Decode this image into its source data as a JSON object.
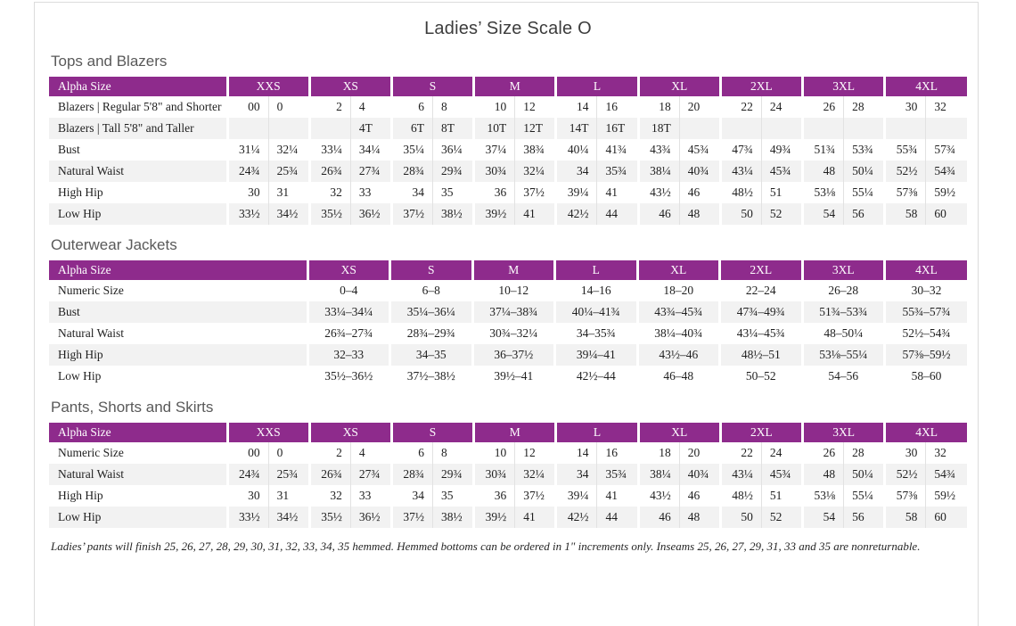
{
  "page": {
    "title": "Ladies’ Size Scale O",
    "footnote": "Ladies’ pants will finish 25, 26, 27, 28, 29, 30, 31, 32, 33, 34, 35 hemmed. Hemmed bottoms can be ordered in 1\" increments only. Inseams 25, 26, 27, 29, 31, 33 and 35 are nonreturnable."
  },
  "colors": {
    "header_purple": "#8e2b8c",
    "stripe_gray": "#f2f2f2"
  },
  "header_label": "Alpha Size",
  "tables": [
    {
      "id": "tops-and-blazers",
      "title": "Tops and Blazers",
      "layout": "paired",
      "groups": [
        "XXS",
        "XS",
        "S",
        "M",
        "L",
        "XL",
        "2XL",
        "3XL",
        "4XL"
      ],
      "rows": [
        {
          "label": "Blazers  |  Regular 5'8\" and Shorter",
          "values": [
            "00",
            "0",
            "2",
            "4",
            "6",
            "8",
            "10",
            "12",
            "14",
            "16",
            "18",
            "20",
            "22",
            "24",
            "26",
            "28",
            "30",
            "32"
          ]
        },
        {
          "label": "Blazers  |  Tall 5'8\" and Taller",
          "values": [
            "",
            "",
            "",
            "4T",
            "6T",
            "8T",
            "10T",
            "12T",
            "14T",
            "16T",
            "18T",
            "",
            "",
            "",
            "",
            "",
            "",
            ""
          ]
        },
        {
          "label": "Bust",
          "values": [
            "31¼",
            "32¼",
            "33¼",
            "34¼",
            "35¼",
            "36¼",
            "37¼",
            "38¾",
            "40¼",
            "41¾",
            "43¾",
            "45¾",
            "47¾",
            "49¾",
            "51¾",
            "53¾",
            "55¾",
            "57¾"
          ]
        },
        {
          "label": "Natural Waist",
          "values": [
            "24¾",
            "25¾",
            "26¾",
            "27¾",
            "28¾",
            "29¾",
            "30¾",
            "32¼",
            "34",
            "35¾",
            "38¼",
            "40¾",
            "43¼",
            "45¾",
            "48",
            "50¼",
            "52½",
            "54¾"
          ]
        },
        {
          "label": "High Hip",
          "values": [
            "30",
            "31",
            "32",
            "33",
            "34",
            "35",
            "36",
            "37½",
            "39¼",
            "41",
            "43½",
            "46",
            "48½",
            "51",
            "53⅛",
            "55¼",
            "57⅜",
            "59½"
          ]
        },
        {
          "label": "Low Hip",
          "values": [
            "33½",
            "34½",
            "35½",
            "36½",
            "37½",
            "38½",
            "39½",
            "41",
            "42½",
            "44",
            "46",
            "48",
            "50",
            "52",
            "54",
            "56",
            "58",
            "60"
          ]
        }
      ]
    },
    {
      "id": "outerwear-jackets",
      "title": "Outerwear Jackets",
      "layout": "single",
      "groups": [
        "XS",
        "S",
        "M",
        "L",
        "XL",
        "2XL",
        "3XL",
        "4XL"
      ],
      "rows": [
        {
          "label": "Numeric Size",
          "values": [
            "0–4",
            "6–8",
            "10–12",
            "14–16",
            "18–20",
            "22–24",
            "26–28",
            "30–32"
          ]
        },
        {
          "label": "Bust",
          "values": [
            "33¼–34¼",
            "35¼–36¼",
            "37¼–38¾",
            "40¼–41¾",
            "43¾–45¾",
            "47¾–49¾",
            "51¾–53¾",
            "55¾–57¾"
          ]
        },
        {
          "label": "Natural Waist",
          "values": [
            "26¾–27¾",
            "28¾–29¾",
            "30¾–32¼",
            "34–35¾",
            "38¼–40¾",
            "43¼–45¾",
            "48–50¼",
            "52½–54¾"
          ]
        },
        {
          "label": "High Hip",
          "values": [
            "32–33",
            "34–35",
            "36–37½",
            "39¼–41",
            "43½–46",
            "48½–51",
            "53⅛–55¼",
            "57⅜–59½"
          ]
        },
        {
          "label": "Low Hip",
          "values": [
            "35½–36½",
            "37½–38½",
            "39½–41",
            "42½–44",
            "46–48",
            "50–52",
            "54–56",
            "58–60"
          ]
        }
      ]
    },
    {
      "id": "pants-shorts-and-skirts",
      "title": "Pants, Shorts and Skirts",
      "layout": "paired",
      "groups": [
        "XXS",
        "XS",
        "S",
        "M",
        "L",
        "XL",
        "2XL",
        "3XL",
        "4XL"
      ],
      "rows": [
        {
          "label": "Numeric Size",
          "values": [
            "00",
            "0",
            "2",
            "4",
            "6",
            "8",
            "10",
            "12",
            "14",
            "16",
            "18",
            "20",
            "22",
            "24",
            "26",
            "28",
            "30",
            "32"
          ]
        },
        {
          "label": "Natural Waist",
          "values": [
            "24¾",
            "25¾",
            "26¾",
            "27¾",
            "28¾",
            "29¾",
            "30¾",
            "32¼",
            "34",
            "35¾",
            "38¼",
            "40¾",
            "43¼",
            "45¾",
            "48",
            "50¼",
            "52½",
            "54¾"
          ]
        },
        {
          "label": "High Hip",
          "values": [
            "30",
            "31",
            "32",
            "33",
            "34",
            "35",
            "36",
            "37½",
            "39¼",
            "41",
            "43½",
            "46",
            "48½",
            "51",
            "53⅛",
            "55¼",
            "57⅜",
            "59½"
          ]
        },
        {
          "label": "Low Hip",
          "values": [
            "33½",
            "34½",
            "35½",
            "36½",
            "37½",
            "38½",
            "39½",
            "41",
            "42½",
            "44",
            "46",
            "48",
            "50",
            "52",
            "54",
            "56",
            "58",
            "60"
          ]
        }
      ]
    }
  ]
}
